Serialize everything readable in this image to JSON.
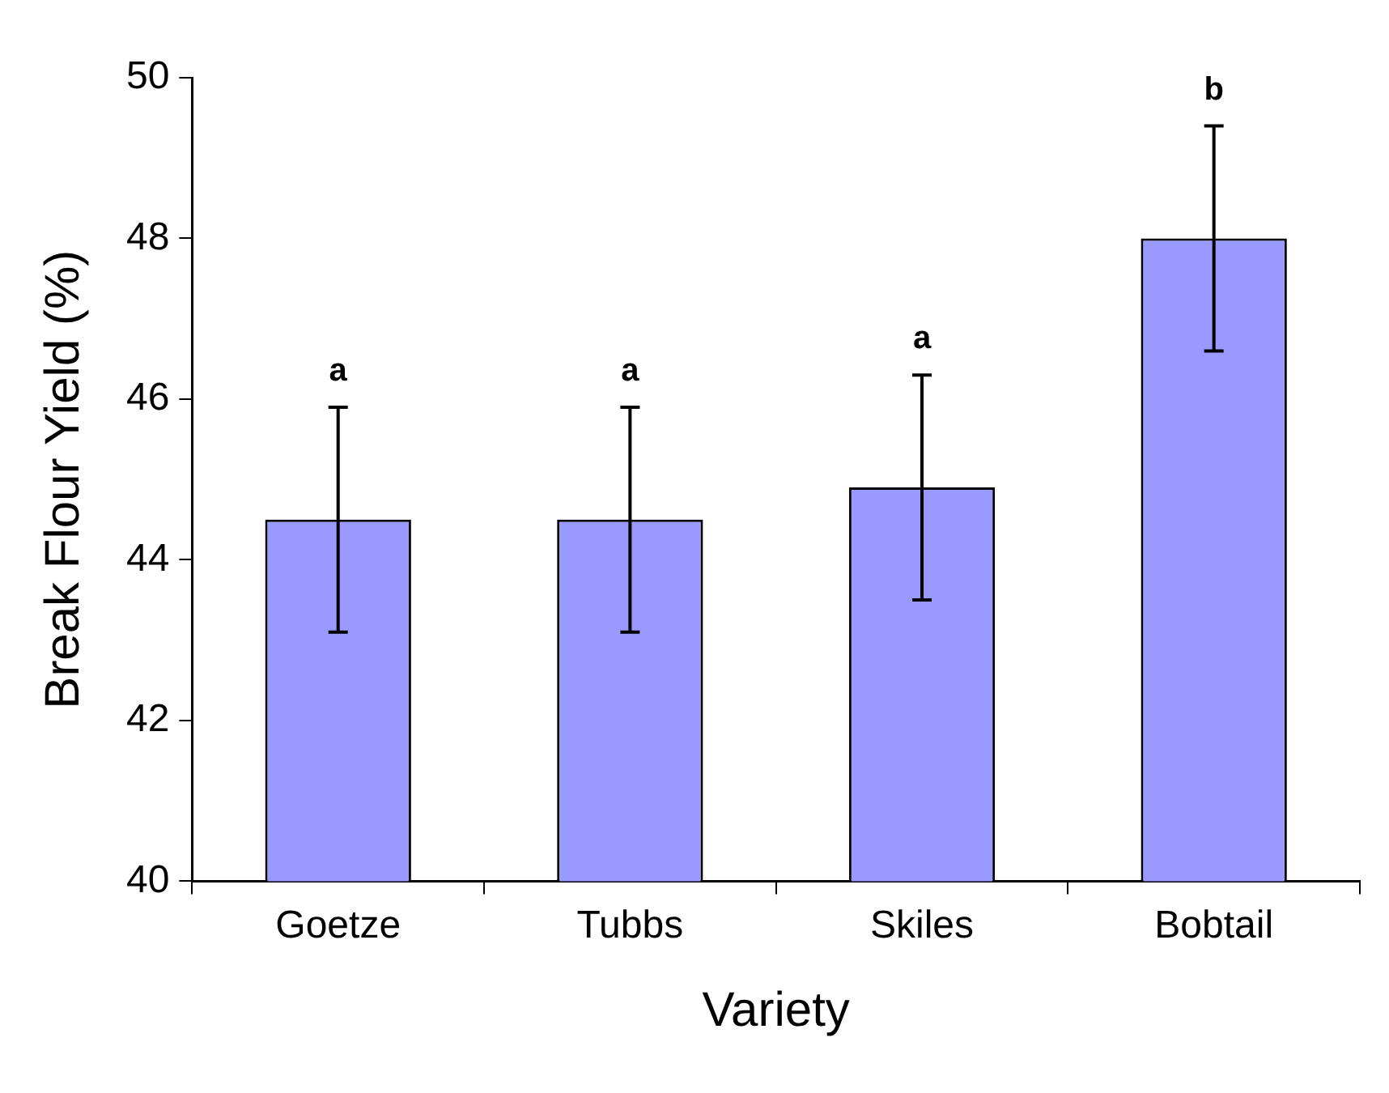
{
  "chart_data": {
    "type": "bar",
    "xlabel": "Variety",
    "ylabel": "Break Flour Yield (%)",
    "categories": [
      "Goetze",
      "Tubbs",
      "Skiles",
      "Bobtail"
    ],
    "values": [
      44.5,
      44.5,
      44.9,
      48.0
    ],
    "errors": [
      1.4,
      1.4,
      1.4,
      1.4
    ],
    "color": "#9999ff",
    "ylim": [
      40,
      50
    ],
    "yticks": [
      40,
      42,
      44,
      46,
      48,
      50
    ],
    "grid": false,
    "legend": false,
    "annotations": [
      "a",
      "a",
      "a",
      "b"
    ]
  }
}
